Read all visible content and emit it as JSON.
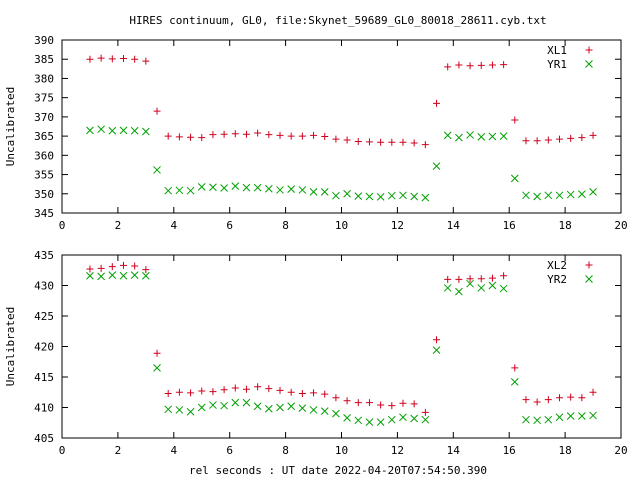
{
  "title": "HIRES continuum, GL0, file:Skynet_59689_GL0_80018_28611.cyb.txt",
  "xlabel": "rel seconds : UT date 2022-04-20T07:54:50.390",
  "chart_data": [
    {
      "type": "scatter",
      "ylabel": "Uncalibrated",
      "xlim": [
        0,
        20
      ],
      "ylim": [
        345,
        390
      ],
      "xticks": [
        "0",
        "2",
        "4",
        "6",
        "8",
        "10",
        "12",
        "14",
        "16",
        "18",
        "20"
      ],
      "yticks": [
        "345",
        "350",
        "355",
        "360",
        "365",
        "370",
        "375",
        "380",
        "385",
        "390"
      ],
      "legend_position": "top-right",
      "x": [
        1.0,
        1.2,
        1.4,
        1.6,
        1.8,
        2.0,
        2.2,
        2.4,
        2.6,
        2.8,
        3.0,
        3.2,
        3.4,
        3.6,
        3.8,
        4.0,
        4.2,
        4.4,
        4.6,
        4.8,
        5.0,
        5.2,
        5.4,
        5.6,
        5.8,
        6.0,
        6.2,
        6.4,
        6.6,
        6.8,
        7.0,
        7.2,
        7.4,
        7.6,
        7.8,
        8.0,
        8.2,
        8.4,
        8.6,
        8.8,
        9.0,
        9.2,
        9.4,
        9.6,
        9.8,
        10.0,
        10.2,
        10.4,
        10.6,
        10.8,
        11.0,
        11.2,
        11.4,
        11.6,
        11.8,
        12.0,
        12.2,
        12.4,
        12.6,
        12.8,
        13.0,
        13.2,
        13.4,
        13.6,
        13.8,
        14.0,
        14.2,
        14.4,
        14.6,
        14.8,
        15.0,
        15.2,
        15.4,
        15.6,
        15.8,
        16.0,
        16.2,
        16.4,
        16.6,
        16.8,
        17.0,
        17.2,
        17.4,
        17.6,
        17.8,
        18.0,
        18.2,
        18.4,
        18.6,
        18.8,
        19.0,
        19.2
      ],
      "series": [
        {
          "name": "XL1",
          "marker": "plus",
          "color": "#d0001c",
          "x": [
            1.0,
            1.4,
            1.8,
            2.2,
            2.6,
            3.0,
            3.4,
            3.8,
            4.2,
            4.6,
            5.0,
            5.4,
            5.8,
            6.2,
            6.6,
            7.0,
            7.4,
            7.8,
            8.2,
            8.6,
            9.0,
            9.4,
            9.8,
            10.2,
            10.6,
            11.0,
            11.4,
            11.8,
            12.2,
            12.6,
            13.0,
            13.4,
            13.8,
            14.2,
            14.6,
            15.0,
            15.4,
            15.8,
            16.2,
            16.6,
            17.0,
            17.4,
            17.8,
            18.2,
            18.6,
            19.0
          ],
          "y": [
            385.0,
            385.3,
            385.1,
            385.2,
            385.0,
            384.5,
            371.5,
            365.0,
            364.8,
            364.7,
            364.6,
            365.4,
            365.5,
            365.6,
            365.5,
            365.8,
            365.4,
            365.2,
            365.0,
            365.0,
            365.2,
            364.9,
            364.2,
            364.0,
            363.6,
            363.5,
            363.4,
            363.4,
            363.4,
            363.2,
            362.8,
            373.5,
            383.0,
            383.5,
            383.3,
            383.4,
            383.5,
            383.6,
            369.2,
            363.8,
            363.8,
            364.0,
            364.2,
            364.4,
            364.6,
            365.2
          ]
        },
        {
          "name": "YR1",
          "marker": "cross",
          "color": "#00a000",
          "x": [
            1.0,
            1.4,
            1.8,
            2.2,
            2.6,
            3.0,
            3.4,
            3.8,
            4.2,
            4.6,
            5.0,
            5.4,
            5.8,
            6.2,
            6.6,
            7.0,
            7.4,
            7.8,
            8.2,
            8.6,
            9.0,
            9.4,
            9.8,
            10.2,
            10.6,
            11.0,
            11.4,
            11.8,
            12.2,
            12.6,
            13.0,
            13.4,
            13.8,
            14.2,
            14.6,
            15.0,
            15.4,
            15.8,
            16.2,
            16.6,
            17.0,
            17.4,
            17.8,
            18.2,
            18.6,
            19.0
          ],
          "y": [
            366.5,
            366.8,
            366.4,
            366.5,
            366.4,
            366.2,
            356.2,
            350.8,
            350.9,
            350.8,
            351.8,
            351.7,
            351.5,
            352.0,
            351.6,
            351.6,
            351.3,
            351.0,
            351.2,
            351.0,
            350.5,
            350.5,
            349.5,
            350.0,
            349.4,
            349.3,
            349.2,
            349.5,
            349.6,
            349.3,
            349.0,
            357.2,
            365.2,
            364.6,
            365.3,
            364.8,
            364.9,
            365.0,
            354.0,
            349.6,
            349.3,
            349.6,
            349.6,
            349.8,
            349.9,
            350.5
          ]
        }
      ]
    },
    {
      "type": "scatter",
      "ylabel": "Uncalibrated",
      "xlim": [
        0,
        20
      ],
      "ylim": [
        405,
        435
      ],
      "xticks": [
        "0",
        "2",
        "4",
        "6",
        "8",
        "10",
        "12",
        "14",
        "16",
        "18",
        "20"
      ],
      "yticks": [
        "405",
        "410",
        "415",
        "420",
        "425",
        "430",
        "435"
      ],
      "legend_position": "top-right",
      "series": [
        {
          "name": "XL2",
          "marker": "plus",
          "color": "#d0001c",
          "x": [
            1.0,
            1.4,
            1.8,
            2.2,
            2.6,
            3.0,
            3.4,
            3.8,
            4.2,
            4.6,
            5.0,
            5.4,
            5.8,
            6.2,
            6.6,
            7.0,
            7.4,
            7.8,
            8.2,
            8.6,
            9.0,
            9.4,
            9.8,
            10.2,
            10.6,
            11.0,
            11.4,
            11.8,
            12.2,
            12.6,
            13.0,
            13.4,
            13.8,
            14.2,
            14.6,
            15.0,
            15.4,
            15.8,
            16.2,
            16.6,
            17.0,
            17.4,
            17.8,
            18.2,
            18.6,
            19.0
          ],
          "y": [
            432.7,
            432.8,
            433.1,
            433.3,
            433.2,
            432.6,
            418.9,
            412.3,
            412.5,
            412.4,
            412.7,
            412.6,
            412.9,
            413.2,
            413.0,
            413.4,
            413.1,
            412.8,
            412.5,
            412.3,
            412.4,
            412.2,
            411.6,
            411.1,
            410.8,
            410.8,
            410.4,
            410.3,
            410.7,
            410.6,
            409.2,
            421.1,
            431.0,
            431.0,
            431.1,
            431.1,
            431.2,
            431.6,
            416.5,
            411.3,
            410.9,
            411.3,
            411.6,
            411.7,
            411.6,
            412.5
          ]
        },
        {
          "name": "YR2",
          "marker": "cross",
          "color": "#00a000",
          "x": [
            1.0,
            1.4,
            1.8,
            2.2,
            2.6,
            3.0,
            3.4,
            3.8,
            4.2,
            4.6,
            5.0,
            5.4,
            5.8,
            6.2,
            6.6,
            7.0,
            7.4,
            7.8,
            8.2,
            8.6,
            9.0,
            9.4,
            9.8,
            10.2,
            10.6,
            11.0,
            11.4,
            11.8,
            12.2,
            12.6,
            13.0,
            13.4,
            13.8,
            14.2,
            14.6,
            15.0,
            15.4,
            15.8,
            16.2,
            16.6,
            17.0,
            17.4,
            17.8,
            18.2,
            18.6,
            19.0
          ],
          "y": [
            431.6,
            431.5,
            431.7,
            431.6,
            431.7,
            431.6,
            416.5,
            409.7,
            409.6,
            409.3,
            410.0,
            410.4,
            410.3,
            410.8,
            410.8,
            410.2,
            409.8,
            410.0,
            410.2,
            409.9,
            409.6,
            409.4,
            409.0,
            408.3,
            407.9,
            407.6,
            407.6,
            408.0,
            408.4,
            408.2,
            408.0,
            419.4,
            429.6,
            429.0,
            430.3,
            429.6,
            430.0,
            429.5,
            414.2,
            408.0,
            407.9,
            408.0,
            408.4,
            408.6,
            408.6,
            408.7
          ]
        }
      ]
    }
  ]
}
